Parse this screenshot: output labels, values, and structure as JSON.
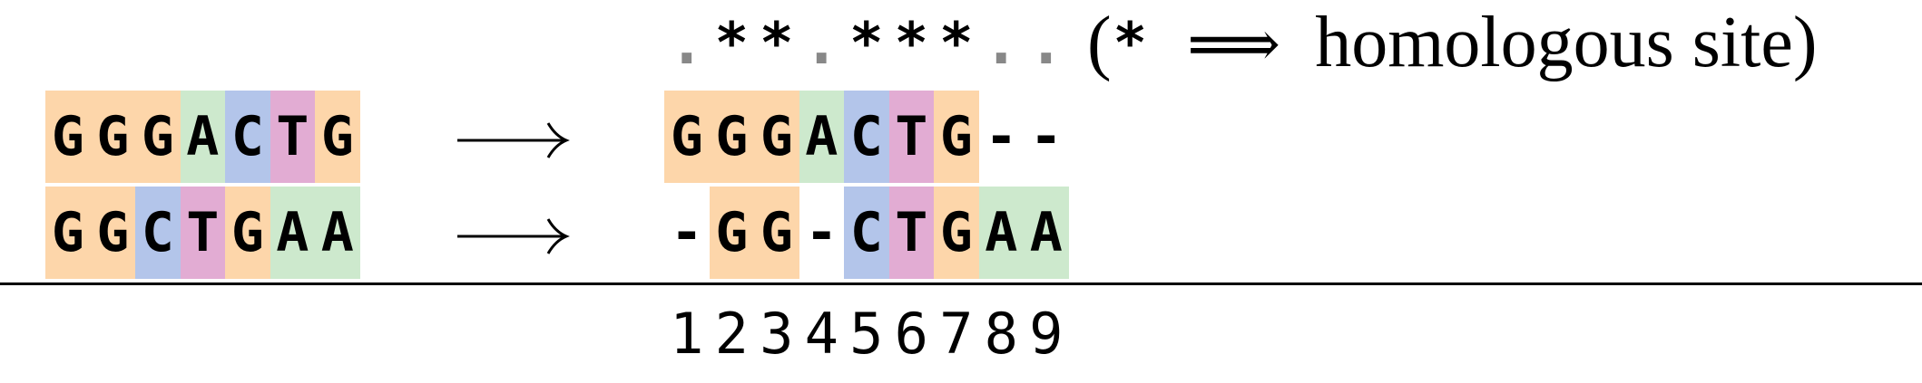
{
  "colors": {
    "G": "#fdd6aa",
    "A": "#cde9cd",
    "C": "#b3c5ea",
    "T": "#e2acd3",
    "gap": "#ffffff"
  },
  "conservation": [
    ".",
    "*",
    "*",
    ".",
    "*",
    "*",
    "*",
    ".",
    "."
  ],
  "legend": {
    "open_paren": "(",
    "star": "*",
    "implies": "⟹",
    "label": "homologous site)"
  },
  "arrow_symbol": "⟶",
  "unaligned": [
    [
      "G",
      "G",
      "G",
      "A",
      "C",
      "T",
      "G"
    ],
    [
      "G",
      "G",
      "C",
      "T",
      "G",
      "A",
      "A"
    ]
  ],
  "aligned": [
    [
      "G",
      "G",
      "G",
      "A",
      "C",
      "T",
      "G",
      "-",
      "-"
    ],
    [
      "-",
      "G",
      "G",
      "-",
      "C",
      "T",
      "G",
      "A",
      "A"
    ]
  ],
  "positions": [
    "1",
    "2",
    "3",
    "4",
    "5",
    "6",
    "7",
    "8",
    "9"
  ]
}
